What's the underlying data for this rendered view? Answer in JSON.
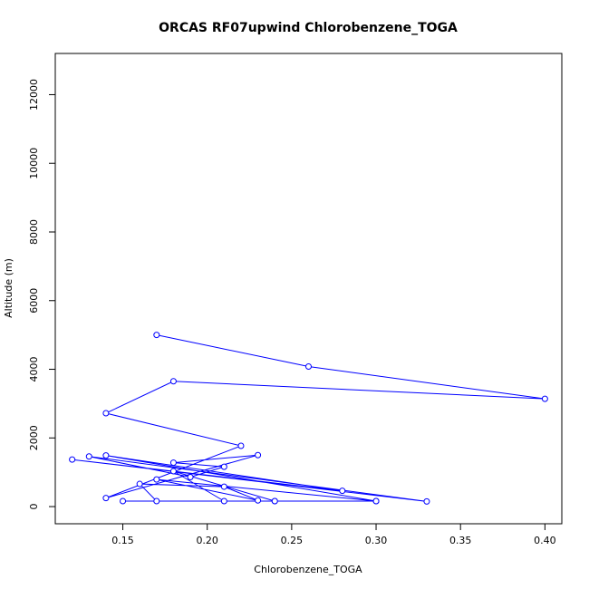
{
  "chart_data": {
    "type": "line",
    "title": "ORCAS RF07upwind Chlorobenzene_TOGA",
    "xlabel": "Chlorobenzene_TOGA",
    "ylabel": "Altitude (m)",
    "xlim": [
      0.11,
      0.41
    ],
    "ylim": [
      -500,
      13200
    ],
    "xticks": [
      0.15,
      0.2,
      0.25,
      0.3,
      0.35,
      0.4
    ],
    "xtick_labels": [
      "0.15",
      "0.20",
      "0.25",
      "0.30",
      "0.35",
      "0.40"
    ],
    "yticks": [
      0,
      2000,
      4000,
      6000,
      8000,
      10000,
      12000
    ],
    "ytick_labels": [
      "0",
      "2000",
      "4000",
      "6000",
      "8000",
      "10000",
      "12000"
    ],
    "grid": false,
    "series": [
      {
        "color": "#0000ff",
        "marker": "open-circle",
        "x": [
          0.17,
          0.26,
          0.4,
          0.18,
          0.14,
          0.22,
          0.14,
          0.23,
          0.18,
          0.21,
          0.19,
          0.13,
          0.33,
          0.12,
          0.28,
          0.14,
          0.3,
          0.15,
          0.24,
          0.17,
          0.16,
          0.21,
          0.23,
          0.17,
          0.3,
          0.24,
          0.18,
          0.21
        ],
        "y": [
          5000,
          4080,
          3140,
          3650,
          2720,
          1770,
          250,
          1500,
          1280,
          1160,
          860,
          1460,
          150,
          1370,
          460,
          1490,
          160,
          160,
          160,
          160,
          660,
          580,
          180,
          790,
          160,
          160,
          1030,
          160
        ]
      }
    ]
  }
}
